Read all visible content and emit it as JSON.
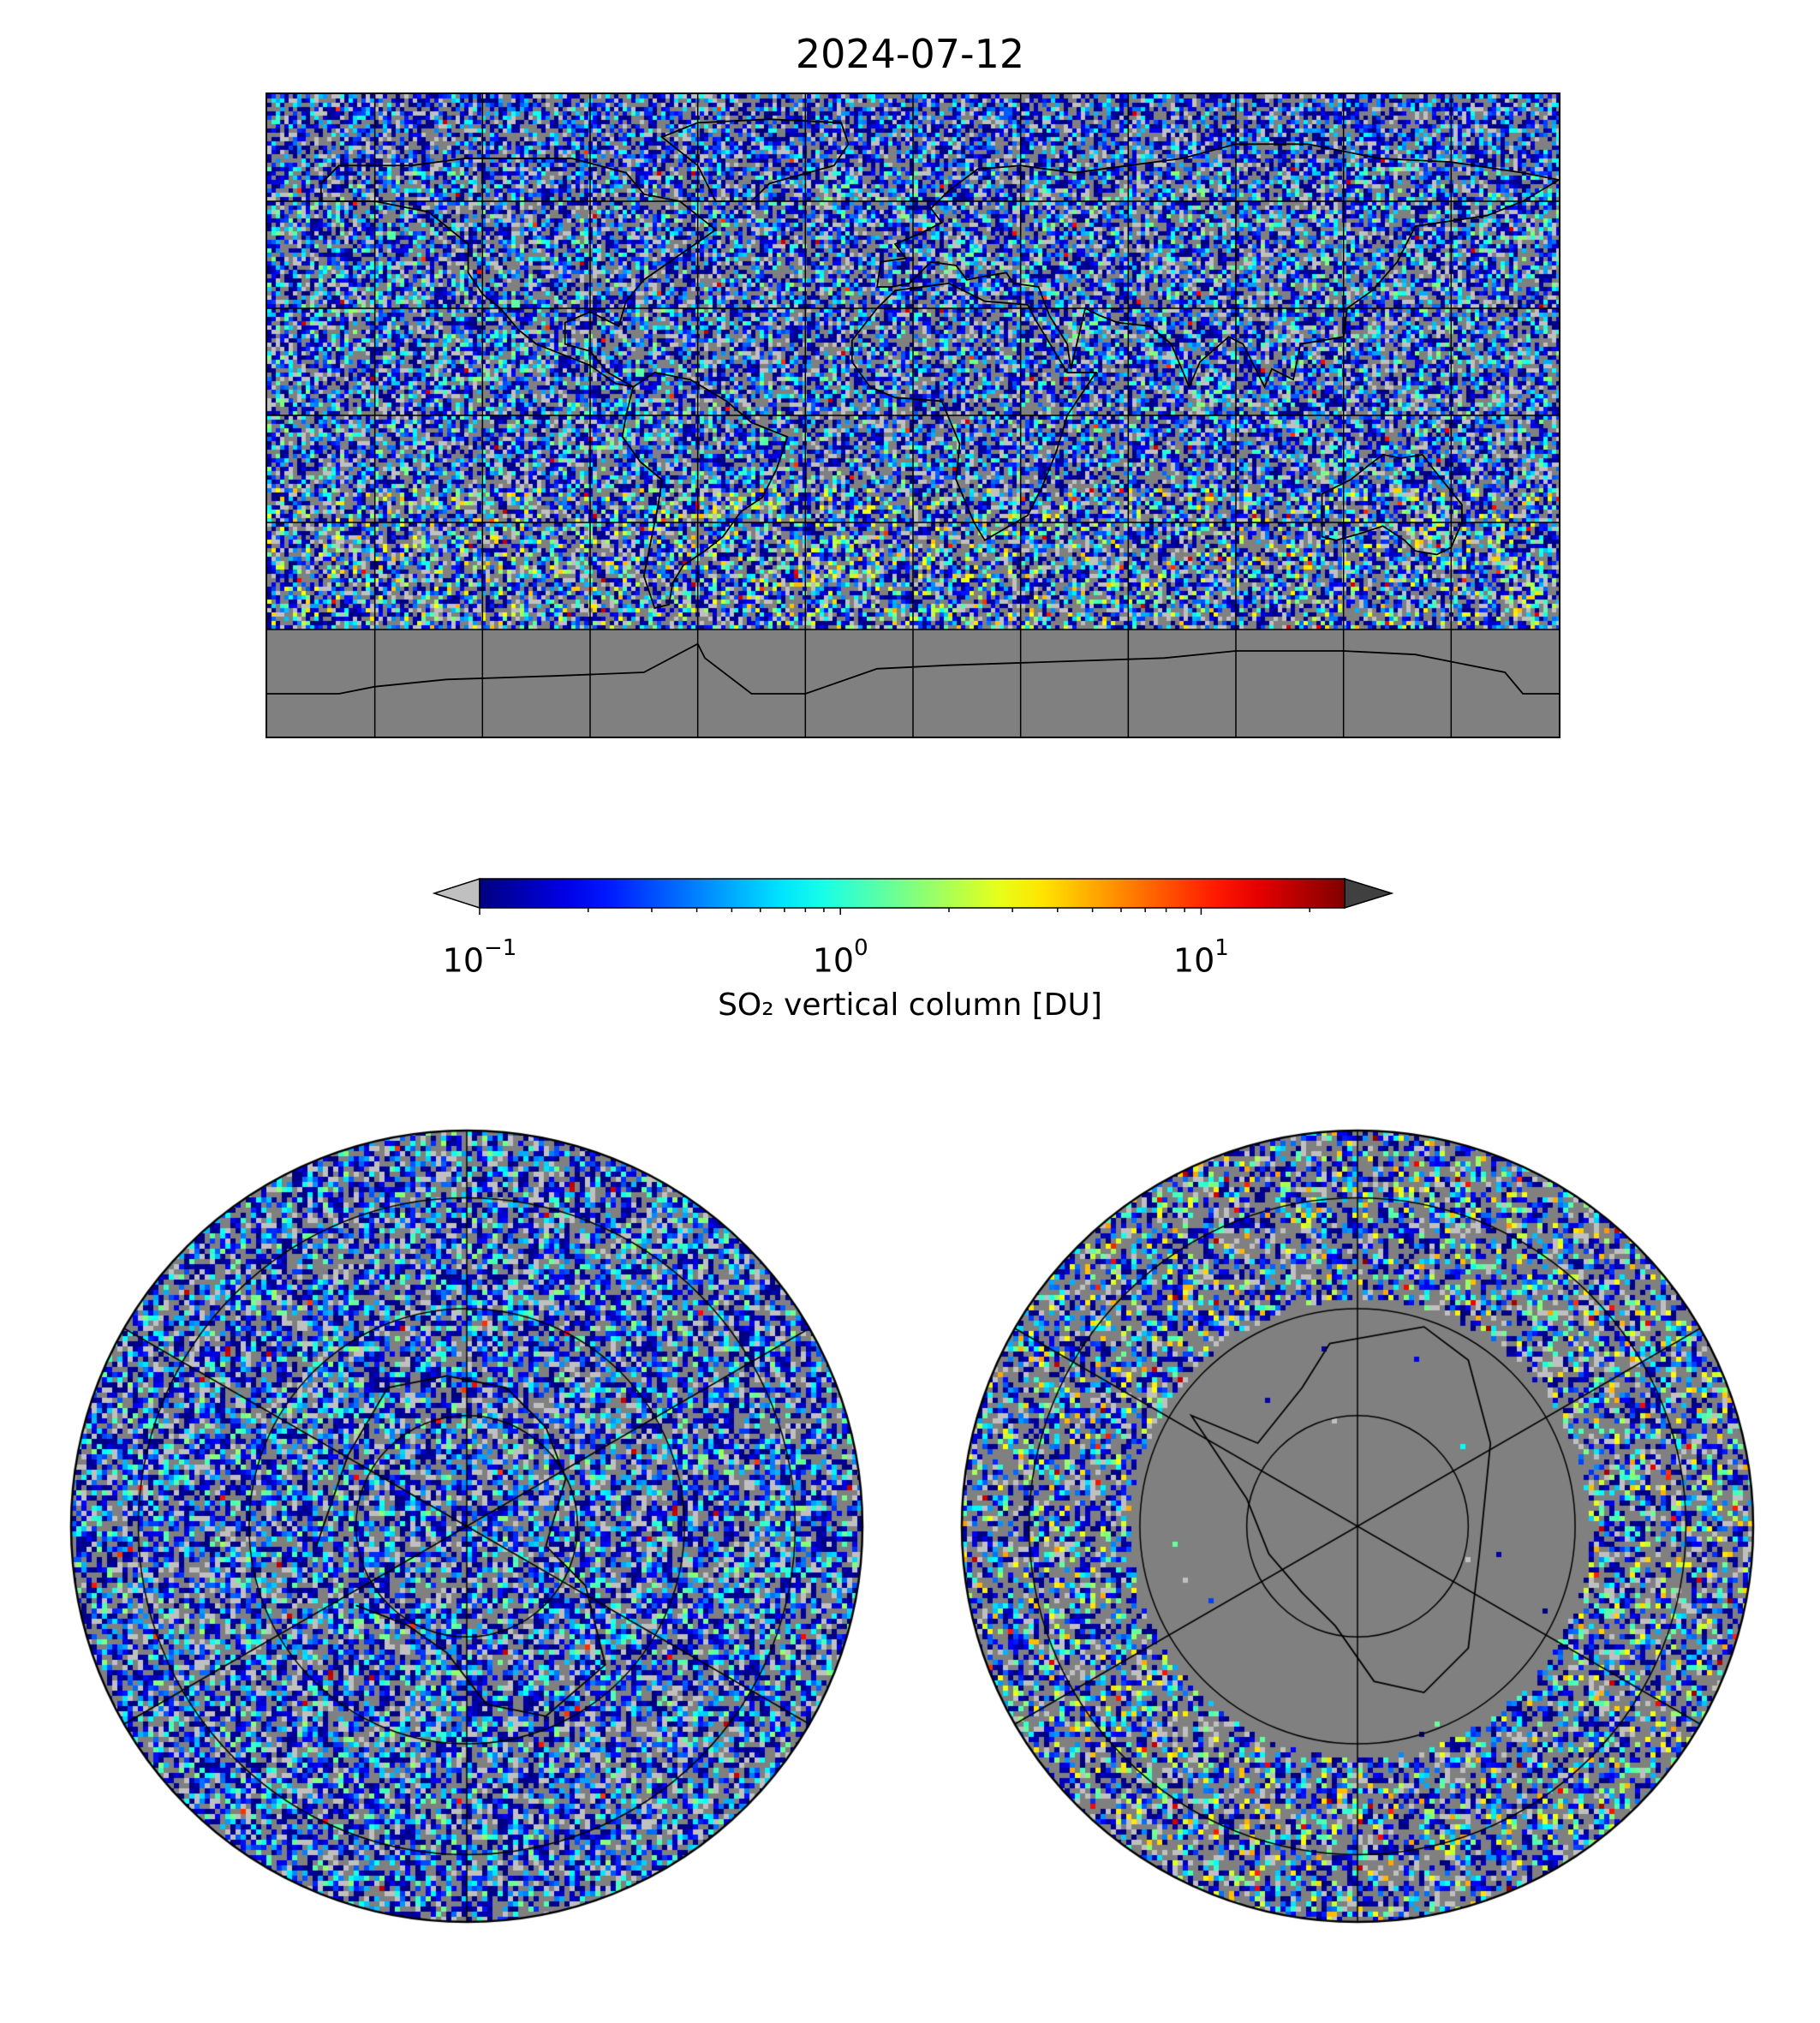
{
  "figure": {
    "title": "2024-07-12"
  },
  "colorbar": {
    "label": "SO₂ vertical column [DU]",
    "scale": "log",
    "vmin": 0.1,
    "vmax": 25,
    "colormap": "jet",
    "under_color": "#c0c0c0",
    "over_color": "#404040",
    "ticks": [
      {
        "value": 0.1,
        "base": "10",
        "exp": "−1"
      },
      {
        "value": 1,
        "base": "10",
        "exp": "0"
      },
      {
        "value": 10,
        "base": "10",
        "exp": "1"
      }
    ]
  },
  "maps": {
    "background_color": "#808080",
    "world": {
      "projection": "plate-carree",
      "lon_range": [
        -180,
        180
      ],
      "lat_range": [
        -90,
        90
      ],
      "gridline_lon_step": 30,
      "gridline_lat_step": 30
    },
    "north_polar": {
      "projection": "north-polar-stereographic",
      "center": "north-pole"
    },
    "south_polar": {
      "projection": "south-polar-stereographic",
      "center": "south-pole"
    }
  }
}
